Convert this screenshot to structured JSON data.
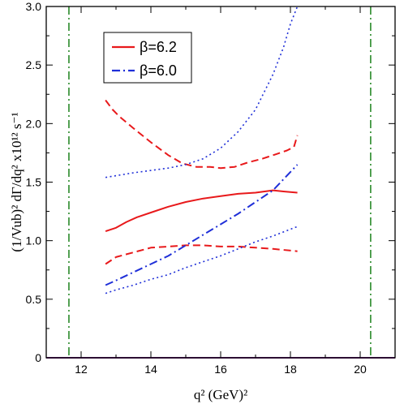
{
  "chart_data": {
    "type": "line",
    "xlabel": "q² (GeV)²",
    "ylabel": "(1/Vub)² dΓ/dq² x10¹² s⁻¹",
    "xlim": [
      11,
      21
    ],
    "ylim": [
      0,
      3.0
    ],
    "xticks": [
      12,
      14,
      16,
      18,
      20
    ],
    "xtick_labels": [
      "12",
      "14",
      "16",
      "18",
      "20"
    ],
    "yticks": [
      0,
      0.5,
      1.0,
      1.5,
      2.0,
      2.5,
      3.0
    ],
    "ytick_labels": [
      "0",
      "0.5",
      "1.0",
      "1.5",
      "2.0",
      "2.5",
      "3.0"
    ],
    "grid": false,
    "legend_position": "top-left",
    "legend": [
      {
        "label": "β=6.2",
        "color": "#e8191b",
        "style": "solid"
      },
      {
        "label": "β=6.0",
        "color": "#1f2fd8",
        "style": "dashdot"
      }
    ],
    "series": [
      {
        "name": "β=6.2",
        "color": "#e8191b",
        "style": "solid",
        "x": [
          12.7,
          13.0,
          13.3,
          13.6,
          14.0,
          14.5,
          15.0,
          15.5,
          16.0,
          16.5,
          17.0,
          17.5,
          17.8,
          18.2
        ],
        "y": [
          1.08,
          1.11,
          1.16,
          1.2,
          1.24,
          1.29,
          1.33,
          1.36,
          1.38,
          1.4,
          1.41,
          1.43,
          1.42,
          1.41
        ]
      },
      {
        "name": "",
        "color": "#e8191b",
        "style": "dashed",
        "x": [
          12.7,
          12.9,
          13.1,
          13.5,
          14.0,
          14.5,
          14.9,
          15.3,
          15.7,
          16.0,
          16.4,
          16.8,
          17.2,
          17.6,
          17.9,
          18.1,
          18.2
        ],
        "y": [
          2.2,
          2.12,
          2.06,
          1.96,
          1.84,
          1.73,
          1.66,
          1.63,
          1.63,
          1.62,
          1.63,
          1.67,
          1.7,
          1.74,
          1.77,
          1.8,
          1.9
        ]
      },
      {
        "name": "",
        "color": "#e8191b",
        "style": "dashed",
        "x": [
          12.7,
          13.0,
          13.5,
          14.0,
          14.5,
          15.0,
          15.5,
          16.0,
          16.5,
          17.0,
          17.5,
          18.2
        ],
        "y": [
          0.8,
          0.86,
          0.9,
          0.94,
          0.95,
          0.96,
          0.96,
          0.95,
          0.95,
          0.94,
          0.93,
          0.91
        ]
      },
      {
        "name": "β=6.0",
        "color": "#1f2fd8",
        "style": "dashdot",
        "x": [
          12.7,
          13.0,
          13.5,
          14.0,
          14.5,
          15.0,
          15.5,
          16.0,
          16.5,
          17.0,
          17.5,
          18.2
        ],
        "y": [
          0.62,
          0.66,
          0.73,
          0.8,
          0.87,
          0.96,
          1.05,
          1.14,
          1.23,
          1.33,
          1.43,
          1.65
        ]
      },
      {
        "name": "",
        "color": "#1f2fd8",
        "style": "dotted",
        "x": [
          12.7,
          13.5,
          14.0,
          14.5,
          15.0,
          15.5,
          16.0,
          16.5,
          17.0,
          17.5,
          17.8,
          18.0,
          18.2
        ],
        "y": [
          1.54,
          1.58,
          1.6,
          1.62,
          1.65,
          1.7,
          1.79,
          1.93,
          2.12,
          2.42,
          2.65,
          2.85,
          3.0
        ]
      },
      {
        "name": "",
        "color": "#1f2fd8",
        "style": "dotted",
        "x": [
          12.7,
          13.0,
          13.5,
          14.0,
          14.5,
          15.0,
          15.5,
          16.0,
          16.5,
          17.0,
          17.5,
          18.2
        ],
        "y": [
          0.55,
          0.58,
          0.62,
          0.67,
          0.71,
          0.77,
          0.82,
          0.87,
          0.93,
          0.99,
          1.04,
          1.12
        ]
      }
    ],
    "vertical_lines": [
      {
        "x": 11.65,
        "color": "#2a8a2a",
        "style": "dashdot"
      },
      {
        "x": 20.3,
        "color": "#2a8a2a",
        "style": "dashdot"
      }
    ],
    "baseline": {
      "y": 0,
      "color": "#7d2a8f"
    }
  }
}
